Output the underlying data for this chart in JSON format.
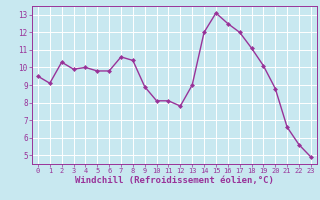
{
  "x": [
    0,
    1,
    2,
    3,
    4,
    5,
    6,
    7,
    8,
    9,
    10,
    11,
    12,
    13,
    14,
    15,
    16,
    17,
    18,
    19,
    20,
    21,
    22,
    23
  ],
  "y": [
    9.5,
    9.1,
    10.3,
    9.9,
    10.0,
    9.8,
    9.8,
    10.6,
    10.4,
    8.9,
    8.1,
    8.1,
    7.8,
    9.0,
    12.0,
    13.1,
    12.5,
    12.0,
    11.1,
    10.1,
    8.8,
    6.6,
    5.6,
    4.9
  ],
  "line_color": "#993399",
  "marker": "D",
  "marker_size": 2.0,
  "bg_color": "#c8e8f0",
  "grid_color": "#ffffff",
  "xlabel": "Windchill (Refroidissement éolien,°C)",
  "xlabel_color": "#993399",
  "tick_color": "#993399",
  "spine_color": "#993399",
  "ylim": [
    4.5,
    13.5
  ],
  "xlim": [
    -0.5,
    23.5
  ],
  "yticks": [
    5,
    6,
    7,
    8,
    9,
    10,
    11,
    12,
    13
  ],
  "xticks": [
    0,
    1,
    2,
    3,
    4,
    5,
    6,
    7,
    8,
    9,
    10,
    11,
    12,
    13,
    14,
    15,
    16,
    17,
    18,
    19,
    20,
    21,
    22,
    23
  ],
  "tick_fontsize": 5.5,
  "xlabel_fontsize": 6.5,
  "linewidth": 1.0
}
